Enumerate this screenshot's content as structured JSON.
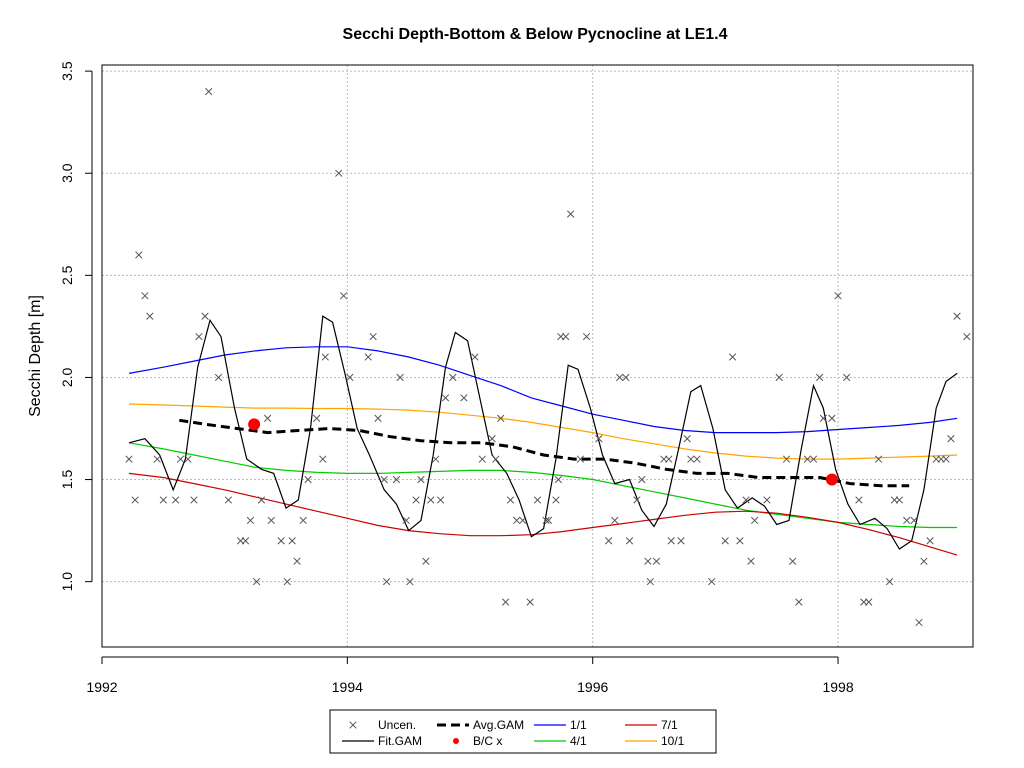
{
  "chart_data": {
    "type": "line",
    "title": "Secchi Depth-Bottom & Below Pycnocline at LE1.4",
    "xlabel": "",
    "ylabel": "Secchi Depth [m]",
    "xlim": [
      1992.0,
      1999.1
    ],
    "ylim": [
      0.68,
      3.53
    ],
    "xticks": [
      1992,
      1994,
      1996,
      1998
    ],
    "xtick_labels": [
      "1992",
      "1994",
      "1996",
      "1998"
    ],
    "yticks": [
      1.0,
      1.5,
      2.0,
      2.5,
      3.0,
      3.5
    ],
    "ytick_labels": [
      "1.0",
      "1.5",
      "2.0",
      "2.5",
      "3.0",
      "3.5"
    ],
    "grid": true,
    "legend_position": "bottom",
    "colors": {
      "uncen": "#555555",
      "fit_gam": "#000000",
      "avg_gam": "#000000",
      "bc": "#ff0000",
      "s_1_1": "#0000ff",
      "s_4_1": "#00cc00",
      "s_7_1": "#cc0000",
      "s_10_1": "#ffa500",
      "grid": "#bbbbbb"
    },
    "legend": [
      {
        "label": "Uncen.",
        "key": "uncen",
        "style": "x"
      },
      {
        "label": "Avg.GAM",
        "key": "avg_gam",
        "style": "dash"
      },
      {
        "label": "1/1",
        "key": "s_1_1",
        "style": "line"
      },
      {
        "label": "7/1",
        "key": "s_7_1",
        "style": "line"
      },
      {
        "label": "Fit.GAM",
        "key": "fit_gam",
        "style": "line"
      },
      {
        "label": "B/C x",
        "key": "bc",
        "style": "dot"
      },
      {
        "label": "4/1",
        "key": "s_4_1",
        "style": "line"
      },
      {
        "label": "10/1",
        "key": "s_10_1",
        "style": "line"
      }
    ],
    "uncensored": [
      [
        1992.22,
        1.6
      ],
      [
        1992.27,
        1.4
      ],
      [
        1992.3,
        2.6
      ],
      [
        1992.35,
        2.4
      ],
      [
        1992.39,
        2.3
      ],
      [
        1992.45,
        1.6
      ],
      [
        1992.5,
        1.4
      ],
      [
        1992.6,
        1.4
      ],
      [
        1992.64,
        1.6
      ],
      [
        1992.7,
        1.6
      ],
      [
        1992.75,
        1.4
      ],
      [
        1992.79,
        2.2
      ],
      [
        1992.84,
        2.3
      ],
      [
        1992.87,
        3.4
      ],
      [
        1992.95,
        2.0
      ],
      [
        1993.03,
        1.4
      ],
      [
        1993.13,
        1.2
      ],
      [
        1993.17,
        1.2
      ],
      [
        1993.21,
        1.3
      ],
      [
        1993.26,
        1.0
      ],
      [
        1993.3,
        1.4
      ],
      [
        1993.35,
        1.8
      ],
      [
        1993.38,
        1.3
      ],
      [
        1993.46,
        1.2
      ],
      [
        1993.51,
        1.0
      ],
      [
        1993.55,
        1.2
      ],
      [
        1993.59,
        1.1
      ],
      [
        1993.64,
        1.3
      ],
      [
        1993.68,
        1.5
      ],
      [
        1993.75,
        1.8
      ],
      [
        1993.8,
        1.6
      ],
      [
        1993.82,
        2.1
      ],
      [
        1993.93,
        3.0
      ],
      [
        1993.97,
        2.4
      ],
      [
        1994.02,
        2.0
      ],
      [
        1994.17,
        2.1
      ],
      [
        1994.21,
        2.2
      ],
      [
        1994.25,
        1.8
      ],
      [
        1994.3,
        1.5
      ],
      [
        1994.32,
        1.0
      ],
      [
        1994.4,
        1.5
      ],
      [
        1994.43,
        2.0
      ],
      [
        1994.48,
        1.3
      ],
      [
        1994.51,
        1.0
      ],
      [
        1994.56,
        1.4
      ],
      [
        1994.6,
        1.5
      ],
      [
        1994.64,
        1.1
      ],
      [
        1994.68,
        1.4
      ],
      [
        1994.72,
        1.6
      ],
      [
        1994.76,
        1.4
      ],
      [
        1994.8,
        1.9
      ],
      [
        1994.86,
        2.0
      ],
      [
        1994.95,
        1.9
      ],
      [
        1995.04,
        2.1
      ],
      [
        1995.1,
        1.6
      ],
      [
        1995.18,
        1.7
      ],
      [
        1995.21,
        1.6
      ],
      [
        1995.25,
        1.8
      ],
      [
        1995.29,
        0.9
      ],
      [
        1995.33,
        1.4
      ],
      [
        1995.38,
        1.3
      ],
      [
        1995.43,
        1.3
      ],
      [
        1995.49,
        0.9
      ],
      [
        1995.55,
        1.4
      ],
      [
        1995.62,
        1.3
      ],
      [
        1995.64,
        1.3
      ],
      [
        1995.7,
        1.4
      ],
      [
        1995.72,
        1.5
      ],
      [
        1995.74,
        2.2
      ],
      [
        1995.78,
        2.2
      ],
      [
        1995.82,
        2.8
      ],
      [
        1995.9,
        1.6
      ],
      [
        1995.95,
        2.2
      ],
      [
        1996.05,
        1.7
      ],
      [
        1996.13,
        1.2
      ],
      [
        1996.18,
        1.3
      ],
      [
        1996.22,
        2.0
      ],
      [
        1996.27,
        2.0
      ],
      [
        1996.3,
        1.2
      ],
      [
        1996.36,
        1.4
      ],
      [
        1996.4,
        1.5
      ],
      [
        1996.45,
        1.1
      ],
      [
        1996.47,
        1.0
      ],
      [
        1996.52,
        1.1
      ],
      [
        1996.58,
        1.6
      ],
      [
        1996.62,
        1.6
      ],
      [
        1996.64,
        1.2
      ],
      [
        1996.72,
        1.2
      ],
      [
        1996.77,
        1.7
      ],
      [
        1996.8,
        1.6
      ],
      [
        1996.85,
        1.6
      ],
      [
        1996.97,
        1.0
      ],
      [
        1997.08,
        1.2
      ],
      [
        1997.14,
        2.1
      ],
      [
        1997.2,
        1.2
      ],
      [
        1997.25,
        1.4
      ],
      [
        1997.29,
        1.1
      ],
      [
        1997.32,
        1.3
      ],
      [
        1997.42,
        1.4
      ],
      [
        1997.52,
        2.0
      ],
      [
        1997.58,
        1.6
      ],
      [
        1997.63,
        1.1
      ],
      [
        1997.68,
        0.9
      ],
      [
        1997.75,
        1.6
      ],
      [
        1997.8,
        1.6
      ],
      [
        1997.85,
        2.0
      ],
      [
        1997.88,
        1.8
      ],
      [
        1997.95,
        1.8
      ],
      [
        1998.0,
        2.4
      ],
      [
        1998.07,
        2.0
      ],
      [
        1998.17,
        1.4
      ],
      [
        1998.21,
        0.9
      ],
      [
        1998.25,
        0.9
      ],
      [
        1998.33,
        1.6
      ],
      [
        1998.42,
        1.0
      ],
      [
        1998.46,
        1.4
      ],
      [
        1998.5,
        1.4
      ],
      [
        1998.56,
        1.3
      ],
      [
        1998.62,
        1.3
      ],
      [
        1998.66,
        0.8
      ],
      [
        1998.7,
        1.1
      ],
      [
        1998.75,
        1.2
      ],
      [
        1998.8,
        1.6
      ],
      [
        1998.84,
        1.6
      ],
      [
        1998.88,
        1.6
      ],
      [
        1998.92,
        1.7
      ],
      [
        1998.97,
        2.3
      ],
      [
        1999.05,
        2.2
      ]
    ],
    "fit_gam": {
      "x": [
        1992.22,
        1992.35,
        1992.47,
        1992.58,
        1992.68,
        1992.78,
        1992.88,
        1992.97,
        1993.08,
        1993.18,
        1993.3,
        1993.4,
        1993.5,
        1993.6,
        1993.7,
        1993.8,
        1993.88,
        1993.98,
        1994.08,
        1994.18,
        1994.3,
        1994.4,
        1994.5,
        1994.6,
        1994.7,
        1994.8,
        1994.88,
        1994.98,
        1995.08,
        1995.18,
        1995.3,
        1995.4,
        1995.5,
        1995.6,
        1995.7,
        1995.8,
        1995.88,
        1995.98,
        1996.08,
        1996.18,
        1996.3,
        1996.4,
        1996.5,
        1996.6,
        1996.7,
        1996.8,
        1996.88,
        1996.98,
        1997.08,
        1997.18,
        1997.3,
        1997.4,
        1997.5,
        1997.6,
        1997.7,
        1997.8,
        1997.88,
        1997.98,
        1998.08,
        1998.18,
        1998.3,
        1998.4,
        1998.5,
        1998.6,
        1998.7,
        1998.8,
        1998.88,
        1998.97
      ],
      "y": [
        1.68,
        1.7,
        1.62,
        1.45,
        1.6,
        2.05,
        2.28,
        2.2,
        1.85,
        1.6,
        1.55,
        1.53,
        1.36,
        1.4,
        1.75,
        2.3,
        2.27,
        2.02,
        1.75,
        1.62,
        1.45,
        1.38,
        1.25,
        1.3,
        1.62,
        2.05,
        2.22,
        2.18,
        1.9,
        1.62,
        1.53,
        1.4,
        1.22,
        1.26,
        1.6,
        2.06,
        2.04,
        1.85,
        1.62,
        1.48,
        1.5,
        1.35,
        1.27,
        1.38,
        1.65,
        1.93,
        1.96,
        1.75,
        1.45,
        1.36,
        1.41,
        1.37,
        1.28,
        1.3,
        1.65,
        1.96,
        1.85,
        1.55,
        1.38,
        1.28,
        1.31,
        1.26,
        1.16,
        1.2,
        1.45,
        1.85,
        1.98,
        2.02
      ]
    },
    "avg_gam": {
      "x": [
        1992.63,
        1992.85,
        1993.1,
        1993.35,
        1993.6,
        1993.85,
        1994.1,
        1994.35,
        1994.6,
        1994.85,
        1995.1,
        1995.35,
        1995.6,
        1995.85,
        1996.1,
        1996.35,
        1996.6,
        1996.85,
        1997.1,
        1997.35,
        1997.6,
        1997.85,
        1998.1,
        1998.35,
        1998.58
      ],
      "y": [
        1.79,
        1.77,
        1.75,
        1.73,
        1.74,
        1.75,
        1.74,
        1.71,
        1.69,
        1.68,
        1.68,
        1.66,
        1.62,
        1.6,
        1.6,
        1.58,
        1.55,
        1.53,
        1.53,
        1.51,
        1.51,
        1.51,
        1.48,
        1.47,
        1.47
      ]
    },
    "bc_points": [
      [
        1993.24,
        1.77
      ],
      [
        1997.95,
        1.5
      ]
    ],
    "series": [
      {
        "name": "1/1",
        "key": "s_1_1",
        "x": [
          1992.22,
          1992.5,
          1992.75,
          1993.0,
          1993.25,
          1993.5,
          1993.75,
          1994.0,
          1994.25,
          1994.5,
          1994.75,
          1995.0,
          1995.25,
          1995.5,
          1995.75,
          1996.0,
          1996.25,
          1996.5,
          1996.75,
          1997.0,
          1997.25,
          1997.5,
          1997.75,
          1998.0,
          1998.25,
          1998.5,
          1998.75,
          1998.97
        ],
        "y": [
          2.02,
          2.05,
          2.08,
          2.11,
          2.13,
          2.145,
          2.15,
          2.15,
          2.13,
          2.1,
          2.06,
          2.01,
          1.96,
          1.9,
          1.86,
          1.82,
          1.79,
          1.76,
          1.74,
          1.73,
          1.73,
          1.73,
          1.735,
          1.745,
          1.755,
          1.765,
          1.78,
          1.8
        ]
      },
      {
        "name": "4/1",
        "key": "s_4_1",
        "x": [
          1992.22,
          1992.5,
          1992.75,
          1993.0,
          1993.25,
          1993.5,
          1993.75,
          1994.0,
          1994.25,
          1994.5,
          1994.75,
          1995.0,
          1995.25,
          1995.5,
          1995.75,
          1996.0,
          1996.25,
          1996.5,
          1996.75,
          1997.0,
          1997.25,
          1997.5,
          1997.75,
          1998.0,
          1998.25,
          1998.5,
          1998.75,
          1998.97
        ],
        "y": [
          1.68,
          1.65,
          1.62,
          1.59,
          1.56,
          1.545,
          1.535,
          1.53,
          1.53,
          1.535,
          1.54,
          1.545,
          1.545,
          1.535,
          1.52,
          1.5,
          1.47,
          1.44,
          1.41,
          1.38,
          1.35,
          1.33,
          1.31,
          1.29,
          1.28,
          1.27,
          1.265,
          1.265
        ]
      },
      {
        "name": "7/1",
        "key": "s_7_1",
        "x": [
          1992.22,
          1992.5,
          1992.75,
          1993.0,
          1993.25,
          1993.5,
          1993.75,
          1994.0,
          1994.25,
          1994.5,
          1994.75,
          1995.0,
          1995.25,
          1995.5,
          1995.75,
          1996.0,
          1996.25,
          1996.5,
          1996.75,
          1997.0,
          1997.25,
          1997.5,
          1997.75,
          1998.0,
          1998.25,
          1998.5,
          1998.75,
          1998.97
        ],
        "y": [
          1.53,
          1.51,
          1.48,
          1.45,
          1.415,
          1.38,
          1.345,
          1.31,
          1.275,
          1.25,
          1.235,
          1.225,
          1.225,
          1.23,
          1.245,
          1.265,
          1.285,
          1.305,
          1.325,
          1.34,
          1.345,
          1.335,
          1.315,
          1.29,
          1.255,
          1.215,
          1.17,
          1.13
        ]
      },
      {
        "name": "10/1",
        "key": "s_10_1",
        "x": [
          1992.22,
          1992.5,
          1992.75,
          1993.0,
          1993.25,
          1993.5,
          1993.75,
          1994.0,
          1994.25,
          1994.5,
          1994.75,
          1995.0,
          1995.25,
          1995.5,
          1995.75,
          1996.0,
          1996.25,
          1996.5,
          1996.75,
          1997.0,
          1997.25,
          1997.5,
          1997.75,
          1998.0,
          1998.25,
          1998.5,
          1998.75,
          1998.97
        ],
        "y": [
          1.87,
          1.865,
          1.86,
          1.855,
          1.85,
          1.85,
          1.848,
          1.848,
          1.845,
          1.84,
          1.83,
          1.815,
          1.8,
          1.78,
          1.755,
          1.73,
          1.7,
          1.675,
          1.65,
          1.63,
          1.615,
          1.605,
          1.6,
          1.6,
          1.605,
          1.61,
          1.615,
          1.62
        ]
      }
    ]
  }
}
